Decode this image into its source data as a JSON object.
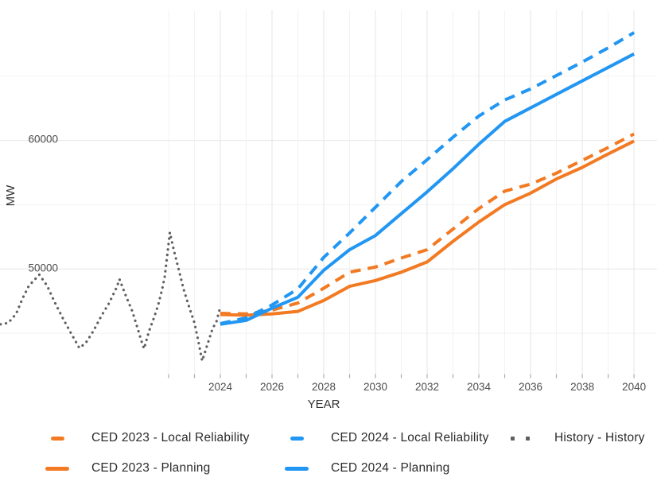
{
  "colors": {
    "orange": "#F27A22",
    "blue": "#2196F3",
    "history": "#5F5F63",
    "grid_major": "#E6E6E6",
    "grid_minor": "#F2F2F2",
    "tick": "#ABABAB",
    "axis_text": "#4D4D4D",
    "title_text": "#333333"
  },
  "legend": {
    "items": [
      {
        "label": "CED 2023 - Local Reliability",
        "color_key": "orange",
        "style": "dashed"
      },
      {
        "label": "CED 2023 - Planning",
        "color_key": "orange",
        "style": "solid"
      },
      {
        "label": "CED 2024 - Local Reliability",
        "color_key": "blue",
        "style": "dashed"
      },
      {
        "label": "CED 2024 - Planning",
        "color_key": "blue",
        "style": "solid"
      },
      {
        "label": "History - History",
        "color_key": "history",
        "style": "dotted"
      }
    ]
  },
  "chart_data": {
    "type": "line",
    "title": "",
    "xlabel": "YEAR",
    "ylabel": "MW",
    "xlim": [
      2015.48,
      2040.89
    ],
    "ylim": [
      41850,
      70120
    ],
    "x_tick_labels": [
      2024,
      2026,
      2028,
      2030,
      2032,
      2034,
      2036,
      2038,
      2040
    ],
    "x_gridline_years": [
      2022,
      2023,
      2024,
      2025,
      2026,
      2027,
      2028,
      2029,
      2030,
      2031,
      2032,
      2033,
      2034,
      2035,
      2036,
      2037,
      2038,
      2039,
      2040
    ],
    "x_tick_mark_years": [
      2022,
      2023,
      2024,
      2025,
      2026,
      2027,
      2028,
      2029,
      2030,
      2031,
      2032,
      2033,
      2034,
      2035,
      2036,
      2037,
      2038,
      2039,
      2040
    ],
    "y_major_gridlines": [
      50000,
      60000
    ],
    "y_minor_gridlines": [
      45000,
      55000,
      65000
    ],
    "y_tick_labels": [
      50000,
      60000
    ],
    "ced_years": [
      2024,
      2025,
      2026,
      2027,
      2028,
      2029,
      2030,
      2031,
      2032,
      2033,
      2034,
      2035,
      2036,
      2037,
      2038,
      2039,
      2040
    ],
    "series": [
      {
        "name": "History - History",
        "style": "dotted",
        "color_key": "history",
        "points": [
          [
            2015.5,
            45700
          ],
          [
            2015.8,
            45800
          ],
          [
            2016.1,
            46500
          ],
          [
            2016.35,
            47700
          ],
          [
            2016.6,
            48700
          ],
          [
            2017.0,
            49550
          ],
          [
            2017.3,
            48700
          ],
          [
            2017.6,
            47400
          ],
          [
            2017.9,
            46200
          ],
          [
            2018.2,
            45100
          ],
          [
            2018.55,
            43850
          ],
          [
            2018.8,
            44250
          ],
          [
            2019.1,
            45200
          ],
          [
            2019.4,
            46350
          ],
          [
            2019.7,
            47350
          ],
          [
            2020.0,
            48600
          ],
          [
            2020.1,
            49200
          ],
          [
            2020.35,
            47900
          ],
          [
            2020.6,
            46700
          ],
          [
            2020.8,
            45400
          ],
          [
            2020.95,
            44400
          ],
          [
            2021.05,
            43800
          ],
          [
            2021.25,
            45200
          ],
          [
            2021.45,
            46300
          ],
          [
            2021.6,
            47200
          ],
          [
            2021.75,
            48400
          ],
          [
            2021.85,
            49400
          ],
          [
            2021.95,
            51100
          ],
          [
            2022.05,
            52840
          ],
          [
            2022.2,
            51500
          ],
          [
            2022.4,
            49900
          ],
          [
            2022.6,
            48300
          ],
          [
            2022.8,
            47000
          ],
          [
            2023.0,
            45800
          ],
          [
            2023.15,
            44400
          ],
          [
            2023.3,
            42850
          ],
          [
            2023.5,
            44100
          ],
          [
            2023.7,
            45350
          ],
          [
            2023.85,
            45900
          ],
          [
            2024.0,
            47050
          ]
        ]
      },
      {
        "name": "CED 2023 - Local Reliability",
        "style": "dashed",
        "color_key": "orange",
        "values": [
          46550,
          46500,
          46800,
          47350,
          48500,
          49750,
          50150,
          50850,
          51500,
          53100,
          54700,
          56050,
          56600,
          57450,
          58450,
          59450,
          60500
        ]
      },
      {
        "name": "CED 2023 - Planning",
        "style": "solid",
        "color_key": "orange",
        "values": [
          46450,
          46400,
          46500,
          46700,
          47550,
          48650,
          49100,
          49750,
          50550,
          52150,
          53650,
          55000,
          55900,
          57000,
          57900,
          58950,
          59950
        ]
      },
      {
        "name": "CED 2024 - Local Reliability",
        "style": "dashed",
        "color_key": "blue",
        "values": [
          45750,
          46200,
          47200,
          48450,
          50900,
          52800,
          54800,
          56800,
          58500,
          60250,
          61900,
          63150,
          64000,
          65050,
          66100,
          67200,
          68390
        ]
      },
      {
        "name": "CED 2024 - Planning",
        "style": "solid",
        "color_key": "blue",
        "values": [
          45700,
          46000,
          46950,
          47800,
          49900,
          51500,
          52600,
          54300,
          56000,
          57800,
          59700,
          61480,
          62530,
          63580,
          64630,
          65680,
          66730
        ]
      }
    ]
  }
}
